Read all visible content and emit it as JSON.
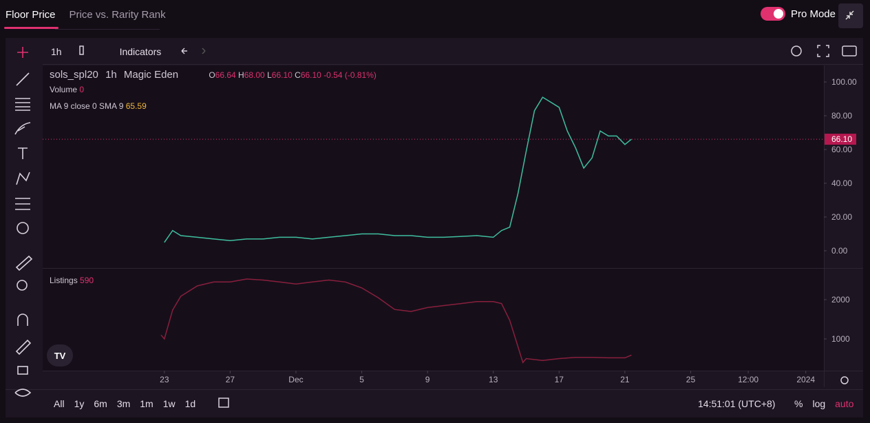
{
  "tabs": [
    "Floor Price",
    "Price vs. Rarity Rank"
  ],
  "pro_mode": "Pro Mode",
  "toolbar": {
    "interval": "1h",
    "indicators": "Indicators"
  },
  "legend": {
    "symbol": "sols_spl20",
    "interval": "1h",
    "exchange": "Magic Eden",
    "o_label": "O",
    "open": "66.64",
    "h_label": "H",
    "high": "68.00",
    "l_label": "L",
    "low": "66.10",
    "c_label": "C",
    "close": "66.10",
    "change": "-0.54 (-0.81%)",
    "volume_label": "Volume",
    "volume": "0",
    "ma_label": "MA 9 close 0 SMA 9",
    "ma": "65.59"
  },
  "chart_data": [
    {
      "type": "line",
      "color": "#3fbf9f",
      "x": [
        0,
        0.5,
        1,
        2,
        3,
        4,
        5,
        6,
        7,
        8,
        9,
        10,
        11,
        12,
        13,
        14,
        15,
        16,
        17,
        18,
        19,
        20,
        20.5,
        21,
        21.5,
        22,
        22.5,
        23,
        23.5,
        24,
        24.5,
        25,
        25.5,
        26,
        26.5,
        27,
        27.5,
        28,
        28.4
      ],
      "values": [
        5,
        12,
        9,
        8,
        7,
        6,
        7,
        7,
        8,
        8,
        7,
        8,
        9,
        10,
        10,
        9,
        9,
        8,
        8,
        8.5,
        9,
        8,
        12,
        14,
        34,
        59,
        83,
        91,
        88,
        85,
        71,
        61,
        49,
        55,
        71,
        68,
        68,
        63,
        66.1
      ],
      "current_price": {
        "value": 66.1,
        "label": "66.10"
      },
      "xlim": [
        -7.4,
        40.1
      ],
      "ylim": [
        -10.2,
        109.8
      ],
      "yticks": [
        {
          "value": 100,
          "label": "100.00"
        },
        {
          "value": 80,
          "label": "80.00"
        },
        {
          "value": 60,
          "label": "60.00"
        },
        {
          "value": 40,
          "label": "40.00"
        },
        {
          "value": 20,
          "label": "20.00"
        },
        {
          "value": 0,
          "label": "0.00"
        }
      ]
    },
    {
      "type": "line",
      "title": "Listings",
      "color": "#8a1f3d",
      "x": [
        -0.2,
        0,
        0.5,
        1,
        2,
        3,
        4,
        5,
        6,
        7,
        8,
        9,
        10,
        11,
        12,
        13,
        14,
        15,
        16,
        17,
        18,
        19,
        20,
        20.5,
        21,
        21.5,
        21.8,
        22,
        23,
        24,
        25,
        26,
        27,
        28,
        28.4
      ],
      "values": [
        1100,
        1000,
        1737,
        2088,
        2350,
        2450,
        2450,
        2526,
        2500,
        2450,
        2400,
        2450,
        2500,
        2450,
        2300,
        2050,
        1750,
        1700,
        1800,
        1850,
        1900,
        1950,
        1950,
        1900,
        1474,
        800,
        400,
        500,
        450,
        500,
        530,
        530,
        520,
        520,
        590
      ],
      "xlim": [
        -7.4,
        40.1
      ],
      "ylim": [
        193,
        2789
      ],
      "yticks": [
        1000,
        2000
      ],
      "xticks": [
        {
          "value": 0,
          "label": "23"
        },
        {
          "value": 4,
          "label": "27"
        },
        {
          "value": 8,
          "label": "Dec"
        },
        {
          "value": 12,
          "label": "5"
        },
        {
          "value": 16,
          "label": "9"
        },
        {
          "value": 20,
          "label": "13"
        },
        {
          "value": 24,
          "label": "17"
        },
        {
          "value": 28,
          "label": "21"
        },
        {
          "value": 32,
          "label": "25"
        },
        {
          "value": 35.5,
          "label": "12:00"
        },
        {
          "value": 39,
          "label": "2024"
        }
      ]
    }
  ],
  "range_buttons": [
    "All",
    "1y",
    "6m",
    "3m",
    "1m",
    "1w",
    "1d"
  ],
  "clock": "14:51:01 (UTC+8)",
  "scale_buttons": [
    "%",
    "log",
    "auto"
  ]
}
